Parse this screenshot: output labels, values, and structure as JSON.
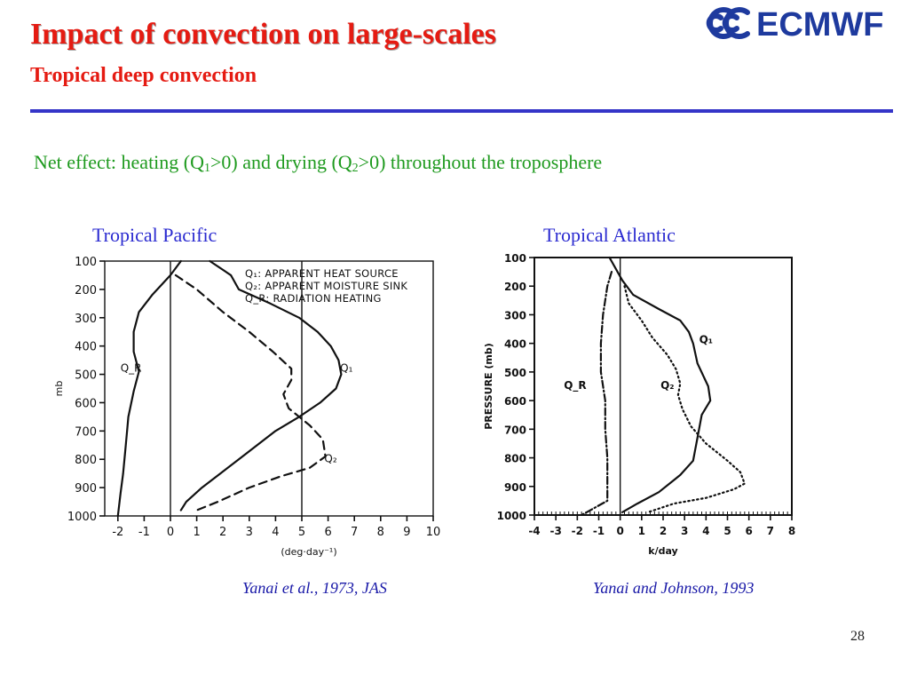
{
  "slide": {
    "title": "Impact of convection on large-scales",
    "subtitle": "Tropical deep convection",
    "net_effect": {
      "prefix": "Net effect:  heating (Q",
      "sub1": "1",
      "middle": ">0) and drying (Q",
      "sub2": "2",
      "suffix": ">0) throughout the troposphere"
    },
    "page_number": "28",
    "logo_text": "ECMWF",
    "colors": {
      "title": "#e51b12",
      "rule": "#3535c8",
      "net_effect": "#1e9a1e",
      "panel_title": "#2a2ad0",
      "citation": "#1a1aa8",
      "logo": "#1e3a9e"
    }
  },
  "panels": {
    "pacific": {
      "title": "Tropical Pacific",
      "citation": "Yanai et al., 1973, JAS"
    },
    "atlantic": {
      "title": "Tropical Atlantic",
      "citation": "Yanai and Johnson, 1993"
    }
  },
  "chart_data": [
    {
      "type": "line",
      "panel": "Tropical Pacific",
      "xlabel": "(deg·day⁻¹)",
      "ylabel": "mb",
      "xlim": [
        -2.5,
        10
      ],
      "ylim": [
        1000,
        100
      ],
      "y_inverted": true,
      "x_ticks": [
        "-2",
        "-1",
        "0",
        "1",
        "2",
        "3",
        "4",
        "5",
        "6",
        "7",
        "8",
        "9",
        "10"
      ],
      "y_ticks": [
        "100",
        "200",
        "300",
        "400",
        "500",
        "600",
        "700",
        "800",
        "900",
        "1000"
      ],
      "reference_lines_x": [
        0,
        5
      ],
      "legend": [
        "Q₁: APPARENT HEAT SOURCE",
        "Q₂: APPARENT MOISTURE SINK",
        "Q_R: RADIATION HEATING"
      ],
      "series": [
        {
          "name": "Q₁",
          "label": "Q₁",
          "label_at": {
            "x": 6.7,
            "y": 490
          },
          "style": "solid",
          "points": [
            [
              1.5,
              100
            ],
            [
              2.3,
              150
            ],
            [
              2.6,
              200
            ],
            [
              3.8,
              250
            ],
            [
              4.9,
              300
            ],
            [
              5.6,
              350
            ],
            [
              6.1,
              400
            ],
            [
              6.4,
              450
            ],
            [
              6.5,
              500
            ],
            [
              6.3,
              550
            ],
            [
              5.7,
              600
            ],
            [
              4.9,
              650
            ],
            [
              4.0,
              700
            ],
            [
              3.3,
              750
            ],
            [
              2.6,
              800
            ],
            [
              1.9,
              850
            ],
            [
              1.2,
              900
            ],
            [
              0.6,
              950
            ],
            [
              0.4,
              980
            ]
          ]
        },
        {
          "name": "Q₂",
          "label": "Q₂",
          "label_at": {
            "x": 6.1,
            "y": 810
          },
          "style": "dashed",
          "points": [
            [
              0.2,
              150
            ],
            [
              1.0,
              200
            ],
            [
              2.0,
              280
            ],
            [
              3.0,
              350
            ],
            [
              3.9,
              420
            ],
            [
              4.6,
              480
            ],
            [
              4.6,
              520
            ],
            [
              4.3,
              570
            ],
            [
              4.5,
              620
            ],
            [
              5.3,
              680
            ],
            [
              5.8,
              730
            ],
            [
              5.9,
              790
            ],
            [
              5.3,
              830
            ],
            [
              4.2,
              860
            ],
            [
              3.0,
              900
            ],
            [
              1.8,
              950
            ],
            [
              1.0,
              980
            ]
          ]
        },
        {
          "name": "Q_R",
          "label": "Q_R",
          "label_at": {
            "x": -1.5,
            "y": 490
          },
          "style": "solid",
          "points": [
            [
              0.4,
              100
            ],
            [
              0.0,
              150
            ],
            [
              -0.7,
              220
            ],
            [
              -1.2,
              280
            ],
            [
              -1.4,
              350
            ],
            [
              -1.4,
              420
            ],
            [
              -1.2,
              490
            ],
            [
              -1.4,
              560
            ],
            [
              -1.6,
              650
            ],
            [
              -1.7,
              750
            ],
            [
              -1.8,
              850
            ],
            [
              -1.9,
              920
            ],
            [
              -2.0,
              1000
            ]
          ]
        }
      ]
    },
    {
      "type": "line",
      "panel": "Tropical Atlantic",
      "xlabel": "k/day",
      "ylabel": "PRESSURE (mb)",
      "xlim": [
        -4,
        8
      ],
      "ylim": [
        1000,
        100
      ],
      "y_inverted": true,
      "x_ticks": [
        "-4",
        "-3",
        "-2",
        "-1",
        "0",
        "1",
        "2",
        "3",
        "4",
        "5",
        "6",
        "7",
        "8"
      ],
      "y_ticks": [
        "100",
        "200",
        "300",
        "400",
        "500",
        "600",
        "700",
        "800",
        "900",
        "1000"
      ],
      "reference_lines_x": [
        0
      ],
      "series": [
        {
          "name": "Q₁",
          "label": "Q₁",
          "label_at": {
            "x": 4.0,
            "y": 400
          },
          "style": "solid",
          "points": [
            [
              -0.5,
              100
            ],
            [
              0.1,
              180
            ],
            [
              0.6,
              230
            ],
            [
              1.8,
              280
            ],
            [
              2.8,
              320
            ],
            [
              3.2,
              360
            ],
            [
              3.4,
              400
            ],
            [
              3.6,
              470
            ],
            [
              4.1,
              550
            ],
            [
              4.2,
              600
            ],
            [
              3.8,
              650
            ],
            [
              3.6,
              730
            ],
            [
              3.4,
              810
            ],
            [
              2.8,
              860
            ],
            [
              1.8,
              920
            ],
            [
              0.8,
              960
            ],
            [
              0.1,
              990
            ]
          ]
        },
        {
          "name": "Q₂",
          "label": "Q₂",
          "label_at": {
            "x": 2.2,
            "y": 560
          },
          "style": "dotted",
          "points": [
            [
              0.2,
              200
            ],
            [
              0.4,
              260
            ],
            [
              1.0,
              320
            ],
            [
              1.5,
              380
            ],
            [
              2.2,
              440
            ],
            [
              2.6,
              490
            ],
            [
              2.8,
              540
            ],
            [
              2.7,
              580
            ],
            [
              2.9,
              630
            ],
            [
              3.3,
              690
            ],
            [
              4.0,
              750
            ],
            [
              5.0,
              810
            ],
            [
              5.6,
              850
            ],
            [
              5.8,
              890
            ],
            [
              5.3,
              910
            ],
            [
              4.0,
              940
            ],
            [
              2.5,
              960
            ],
            [
              1.3,
              990
            ]
          ]
        },
        {
          "name": "Q_R",
          "label": "Q_R",
          "label_at": {
            "x": -2.1,
            "y": 560
          },
          "style": "dashdot",
          "points": [
            [
              -0.4,
              150
            ],
            [
              -0.6,
              200
            ],
            [
              -0.8,
              300
            ],
            [
              -0.9,
              400
            ],
            [
              -0.9,
              500
            ],
            [
              -0.7,
              600
            ],
            [
              -0.7,
              700
            ],
            [
              -0.6,
              800
            ],
            [
              -0.6,
              900
            ],
            [
              -0.6,
              950
            ],
            [
              -1.8,
              1000
            ]
          ]
        }
      ]
    }
  ]
}
